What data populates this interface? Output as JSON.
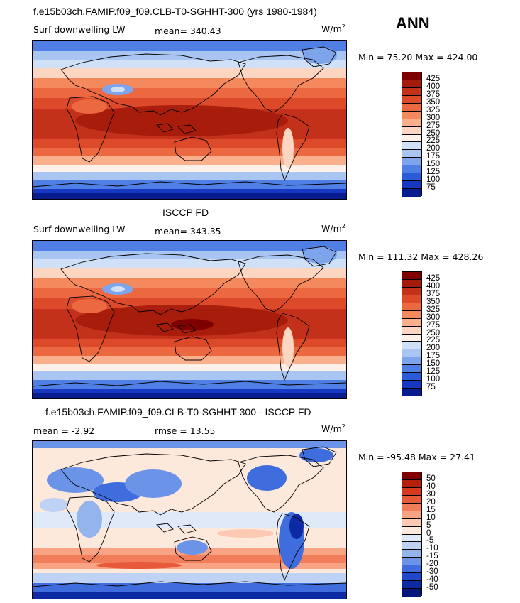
{
  "season": "ANN",
  "units_prefix": "W/m",
  "units_sup": "2",
  "panels": [
    {
      "title": "f.e15b03ch.FAMIP.f09_f09.CLB-T0-SGHHT-300 (yrs 1980-1984)",
      "left_label": "Surf downwelling LW",
      "mid_label": "mean=  340.43",
      "minmax": "Min =   75.20  Max =  424.00",
      "colorbar_labels": [
        "425",
        "400",
        "375",
        "350",
        "325",
        "300",
        "275",
        "250",
        "225",
        "200",
        "175",
        "150",
        "125",
        "100",
        "75"
      ],
      "style": "model"
    },
    {
      "title": "ISCCP FD",
      "left_label": "Surf downwelling LW",
      "mid_label": "mean=  343.35",
      "minmax": "Min =  111.32  Max =  428.26",
      "colorbar_labels": [
        "425",
        "400",
        "375",
        "350",
        "325",
        "300",
        "275",
        "250",
        "225",
        "200",
        "175",
        "150",
        "125",
        "100",
        "75"
      ],
      "style": "obs"
    },
    {
      "title": "f.e15b03ch.FAMIP.f09_f09.CLB-T0-SGHHT-300 - ISCCP FD",
      "left_label": "mean =    -2.92",
      "mid_label": "rmse =    13.55",
      "minmax": "Min =  -95.48  Max =   27.41",
      "colorbar_labels": [
        "50",
        "40",
        "30",
        "20",
        "15",
        "10",
        "5",
        "0",
        "-5",
        "-10",
        "-15",
        "-20",
        "-30",
        "-40",
        "-50"
      ],
      "style": "diff"
    }
  ],
  "colors": {
    "abs_scale": [
      "#7f0000",
      "#a51b0b",
      "#c4311a",
      "#dc4a2a",
      "#ec6840",
      "#f4895e",
      "#fbb08d",
      "#fdd6c2",
      "#fdf1ea",
      "#cfe0f7",
      "#a9c6f2",
      "#7ea5ec",
      "#4f7fe4",
      "#2a5bd8",
      "#1638c2",
      "#071c8f"
    ],
    "diff_scale": [
      "#7f0000",
      "#b5200d",
      "#d53a20",
      "#e8593a",
      "#f17d5a",
      "#f8a484",
      "#fcc9b2",
      "#fde8dc",
      "#dfe9f8",
      "#bdd2f4",
      "#94b4ee",
      "#6b93e7",
      "#3f6dde",
      "#1f48cc",
      "#0c2aa3",
      "#031679"
    ]
  }
}
